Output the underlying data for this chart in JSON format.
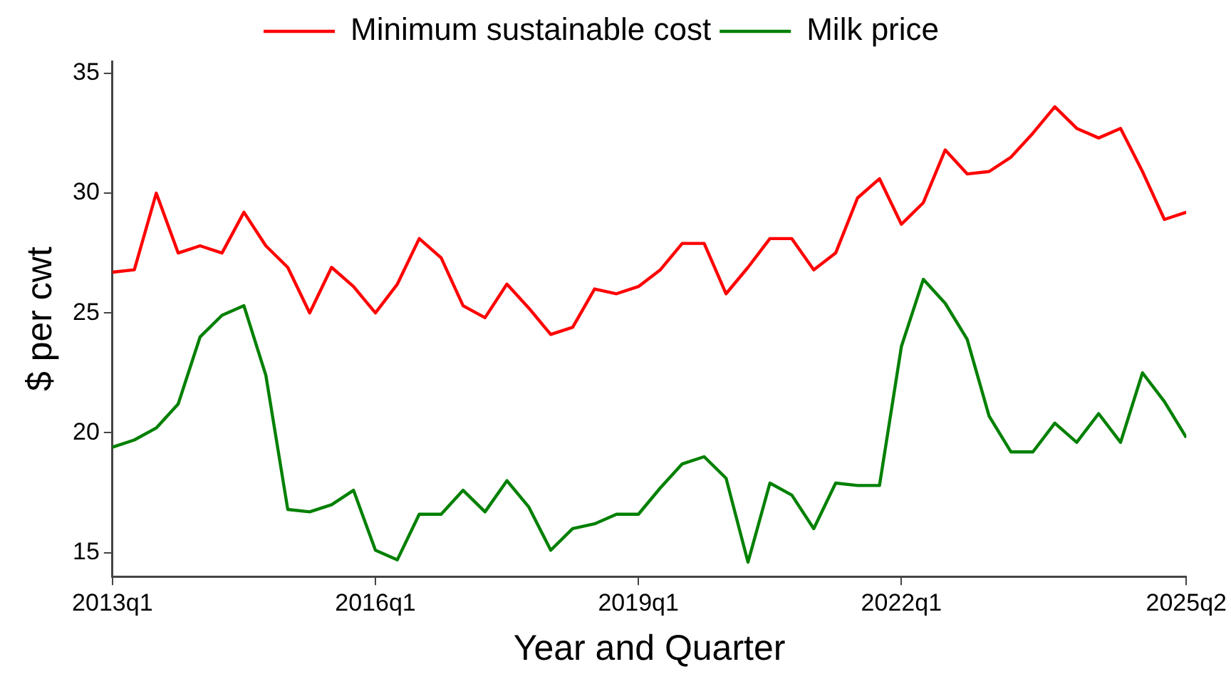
{
  "chart_data": {
    "type": "line",
    "xlabel": "Year and Quarter",
    "ylabel": "$ per cwt",
    "categories": [
      "2013q1",
      null,
      null,
      null,
      null,
      null,
      null,
      null,
      null,
      null,
      null,
      null,
      "2016q1",
      null,
      null,
      null,
      null,
      null,
      null,
      null,
      null,
      null,
      null,
      null,
      "2019q1",
      null,
      null,
      null,
      null,
      null,
      null,
      null,
      null,
      null,
      null,
      null,
      "2022q1",
      null,
      null,
      null,
      null,
      null,
      null,
      null,
      null,
      null,
      null,
      null,
      null,
      "2025q2"
    ],
    "series": [
      {
        "name": "Minimum sustainable cost",
        "color": "#ff0000",
        "values": [
          26.7,
          26.8,
          30.0,
          27.5,
          27.8,
          27.5,
          29.2,
          27.8,
          26.9,
          25.0,
          26.9,
          26.1,
          25.0,
          26.2,
          28.1,
          27.3,
          25.3,
          24.8,
          26.2,
          25.2,
          24.1,
          24.4,
          26.0,
          25.8,
          26.1,
          26.8,
          27.9,
          27.9,
          25.8,
          26.9,
          28.1,
          28.1,
          26.8,
          27.5,
          29.8,
          30.6,
          28.7,
          29.6,
          31.8,
          30.8,
          30.9,
          31.5,
          32.5,
          33.6,
          32.7,
          32.3,
          32.7,
          30.9,
          28.9,
          29.2
        ]
      },
      {
        "name": "Milk price",
        "color": "#008000",
        "values": [
          19.4,
          19.7,
          20.2,
          21.2,
          24.0,
          24.9,
          25.3,
          22.4,
          16.8,
          16.7,
          17.0,
          17.6,
          15.1,
          14.7,
          16.6,
          16.6,
          17.6,
          16.7,
          18.0,
          16.9,
          15.1,
          16.0,
          16.2,
          16.6,
          16.6,
          17.7,
          18.7,
          19.0,
          18.1,
          14.6,
          17.9,
          17.4,
          16.0,
          17.9,
          17.8,
          17.8,
          23.6,
          26.4,
          25.4,
          23.9,
          20.7,
          19.2,
          19.2,
          20.4,
          19.6,
          20.8,
          19.6,
          22.5,
          21.3,
          19.8
        ]
      }
    ],
    "ylim": [
      14,
      35.5
    ],
    "yticks": [
      15,
      20,
      25,
      30,
      35
    ],
    "grid": false,
    "legend": "top",
    "marker": "none",
    "line_style": "solid"
  }
}
